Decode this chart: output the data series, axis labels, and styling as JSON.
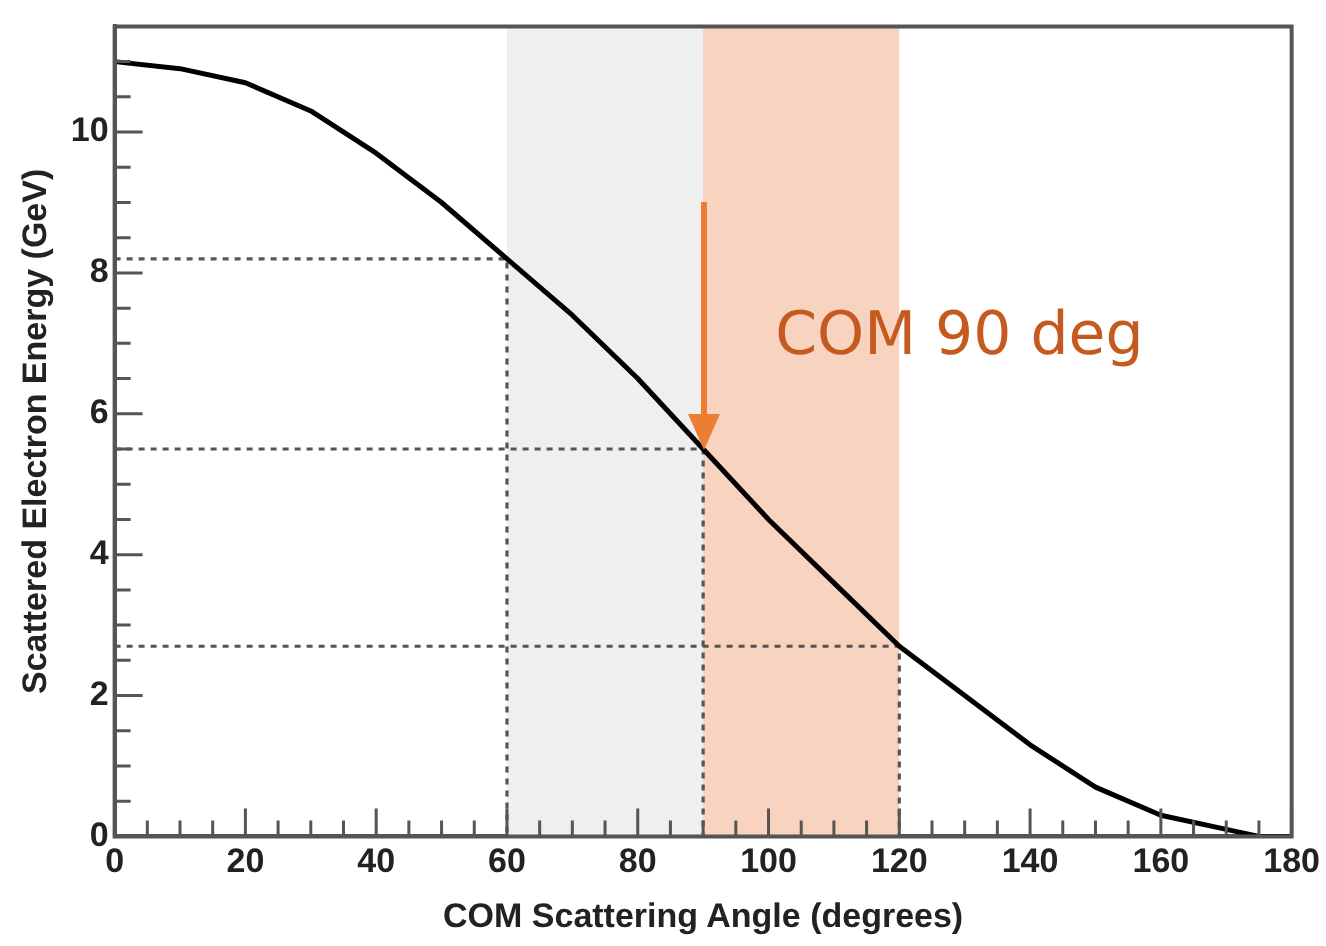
{
  "chart_data": {
    "type": "line",
    "xlabel": "COM Scattering Angle (degrees)",
    "ylabel": "Scattered Electron Energy (GeV)",
    "x": [
      0,
      10,
      20,
      30,
      40,
      50,
      60,
      70,
      80,
      90,
      100,
      110,
      120,
      130,
      140,
      150,
      160,
      170,
      175,
      180
    ],
    "series": [
      {
        "color": "#000000",
        "line_style": "solid",
        "values": [
          11.0,
          10.9,
          10.7,
          10.3,
          9.7,
          9.0,
          8.2,
          7.4,
          6.5,
          5.5,
          4.5,
          3.6,
          2.7,
          2.0,
          1.3,
          0.7,
          0.3,
          0.1,
          0.0,
          0.0
        ]
      },
      {
        "color": "#555555",
        "line_style": "dotted",
        "x": [
          0,
          60,
          60
        ],
        "values": [
          8.2,
          8.2,
          0
        ]
      },
      {
        "color": "#555555",
        "line_style": "dotted",
        "x": [
          0,
          90,
          90
        ],
        "values": [
          5.5,
          5.5,
          0
        ]
      },
      {
        "color": "#555555",
        "line_style": "dotted",
        "x": [
          0,
          120,
          120
        ],
        "values": [
          2.7,
          2.7,
          0
        ]
      }
    ],
    "marker": "none",
    "xlim": [
      0,
      180
    ],
    "xticks": [
      0,
      {
        "value": 5,
        "label": null
      },
      {
        "value": 10,
        "label": null
      },
      {
        "value": 15,
        "label": null
      },
      20,
      {
        "value": 25,
        "label": null
      },
      {
        "value": 30,
        "label": null
      },
      {
        "value": 35,
        "label": null
      },
      40,
      {
        "value": 45,
        "label": null
      },
      {
        "value": 50,
        "label": null
      },
      {
        "value": 55,
        "label": null
      },
      60,
      {
        "value": 65,
        "label": null
      },
      {
        "value": 70,
        "label": null
      },
      {
        "value": 75,
        "label": null
      },
      80,
      {
        "value": 85,
        "label": null
      },
      {
        "value": 90,
        "label": null
      },
      {
        "value": 95,
        "label": null
      },
      100,
      {
        "value": 105,
        "label": null
      },
      {
        "value": 110,
        "label": null
      },
      {
        "value": 115,
        "label": null
      },
      120,
      {
        "value": 125,
        "label": null
      },
      {
        "value": 130,
        "label": null
      },
      {
        "value": 135,
        "label": null
      },
      140,
      {
        "value": 145,
        "label": null
      },
      {
        "value": 150,
        "label": null
      },
      {
        "value": 155,
        "label": null
      },
      160,
      {
        "value": 165,
        "label": null
      },
      {
        "value": 170,
        "label": null
      },
      {
        "value": 175,
        "label": null
      },
      180
    ],
    "ylim": [
      0,
      11.5
    ],
    "yticks": [
      0,
      {
        "value": 0.5,
        "label": null
      },
      {
        "value": 1,
        "label": null
      },
      {
        "value": 1.5,
        "label": null
      },
      2,
      {
        "value": 2.5,
        "label": null
      },
      {
        "value": 3,
        "label": null
      },
      {
        "value": 3.5,
        "label": null
      },
      4,
      {
        "value": 4.5,
        "label": null
      },
      {
        "value": 5,
        "label": null
      },
      {
        "value": 5.5,
        "label": null
      },
      6,
      {
        "value": 6.5,
        "label": null
      },
      {
        "value": 7,
        "label": null
      },
      {
        "value": 7.5,
        "label": null
      },
      8,
      {
        "value": 8.5,
        "label": null
      },
      {
        "value": 9,
        "label": null
      },
      {
        "value": 9.5,
        "label": null
      },
      10,
      {
        "value": 10.5,
        "label": null
      },
      {
        "value": 11,
        "label": null
      }
    ],
    "bands": [
      {
        "axis": "x",
        "from": 60,
        "to": 90,
        "color": "#efefef"
      },
      {
        "axis": "x",
        "from": 90,
        "to": 120,
        "color": "#f7d3c0"
      }
    ],
    "annotations": [
      {
        "text": "COM 90 deg",
        "x": 90,
        "y": 5.5
      }
    ]
  }
}
